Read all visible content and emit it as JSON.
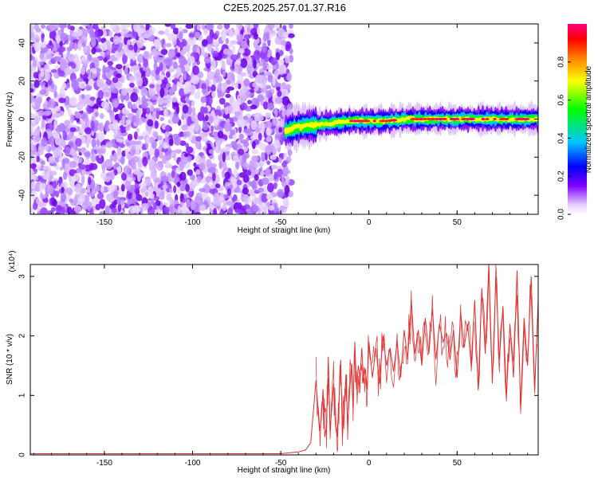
{
  "title": "C2E5.2025.257.01.37.R16",
  "chart_data": [
    {
      "type": "heatmap",
      "name": "spectrogram",
      "xlabel": "Height of straight line (km)",
      "ylabel": "Frequency (Hz)",
      "xlim": [
        -192,
        96
      ],
      "ylim": [
        -50,
        50
      ],
      "xticks": [
        -150,
        -100,
        -50,
        0,
        50
      ],
      "yticks": [
        -40,
        -20,
        0,
        20,
        40
      ],
      "colorbar": {
        "label": "Normalized spectral amplitude",
        "range": [
          0,
          1
        ],
        "ticks": [
          0.0,
          0.2,
          0.4,
          0.6,
          0.8
        ],
        "colormap": [
          "#ffffff",
          "#cc99ff",
          "#7f00ff",
          "#0000ff",
          "#00c8ff",
          "#00ff00",
          "#ffff00",
          "#ff8000",
          "#ff0000",
          "#ff0080"
        ]
      },
      "noise_region_x": [
        -192,
        -44
      ],
      "signal_ridge": [
        {
          "x": -47,
          "y": -6
        },
        {
          "x": -40,
          "y": -4
        },
        {
          "x": -30,
          "y": -3
        },
        {
          "x": -20,
          "y": -2
        },
        {
          "x": -10,
          "y": -1
        },
        {
          "x": 0,
          "y": -1
        },
        {
          "x": 10,
          "y": -1
        },
        {
          "x": 20,
          "y": 0
        },
        {
          "x": 30,
          "y": 0
        },
        {
          "x": 40,
          "y": 0
        },
        {
          "x": 50,
          "y": 0
        },
        {
          "x": 60,
          "y": 0
        },
        {
          "x": 70,
          "y": 0
        },
        {
          "x": 80,
          "y": 0
        },
        {
          "x": 90,
          "y": 0
        }
      ]
    },
    {
      "type": "line",
      "name": "snr",
      "xlabel": "Height of straight line (km)",
      "ylabel": "SNR (10 * v/v)",
      "y_multiplier": "(x10⁴)",
      "xlim": [
        -192,
        96
      ],
      "ylim": [
        0,
        3.2
      ],
      "xticks": [
        -150,
        -100,
        -50,
        0,
        50
      ],
      "yticks": [
        0,
        1,
        2,
        3
      ],
      "color": "#e03030",
      "x": [
        -192,
        -150,
        -100,
        -50,
        -40,
        -36,
        -33,
        -30,
        -28,
        -27,
        -26,
        -25,
        -24,
        -23,
        -22,
        -21,
        -20,
        -19,
        -18,
        -17,
        -16,
        -15,
        -14,
        -13,
        -12,
        -11,
        -10,
        -9,
        -8,
        -7,
        -6,
        -5,
        -4,
        -3,
        -2,
        -1,
        0,
        2,
        4,
        6,
        8,
        10,
        12,
        14,
        16,
        18,
        20,
        22,
        24,
        26,
        28,
        30,
        32,
        34,
        36,
        38,
        40,
        42,
        44,
        46,
        48,
        50,
        52,
        54,
        56,
        58,
        60,
        62,
        64,
        66,
        68,
        70,
        72,
        74,
        76,
        78,
        80,
        82,
        84,
        86,
        88,
        90,
        92,
        94,
        96
      ],
      "y": [
        0.02,
        0.02,
        0.02,
        0.02,
        0.05,
        0.08,
        0.2,
        1.25,
        0.4,
        0.6,
        1.1,
        0.3,
        0.5,
        1.65,
        0.4,
        0.8,
        1.2,
        0.5,
        0.3,
        0.9,
        1.6,
        0.3,
        0.8,
        1.35,
        0.5,
        1.0,
        1.5,
        0.8,
        1.9,
        1.1,
        1.5,
        1.3,
        1.8,
        1.2,
        1.45,
        1.1,
        1.9,
        1.3,
        1.8,
        1.2,
        2.0,
        1.5,
        1.8,
        1.4,
        1.9,
        1.3,
        2.1,
        1.6,
        2.6,
        1.7,
        2.1,
        1.5,
        2.3,
        1.7,
        2.45,
        1.6,
        2.2,
        1.9,
        2.05,
        1.6,
        2.1,
        1.3,
        2.4,
        1.8,
        2.2,
        1.5,
        2.6,
        1.1,
        2.8,
        1.7,
        3.2,
        1.2,
        3.0,
        1.6,
        2.5,
        1.0,
        2.2,
        1.3,
        3.1,
        0.8,
        2.3,
        1.5,
        3.0,
        1.1,
        2.6
      ]
    }
  ]
}
